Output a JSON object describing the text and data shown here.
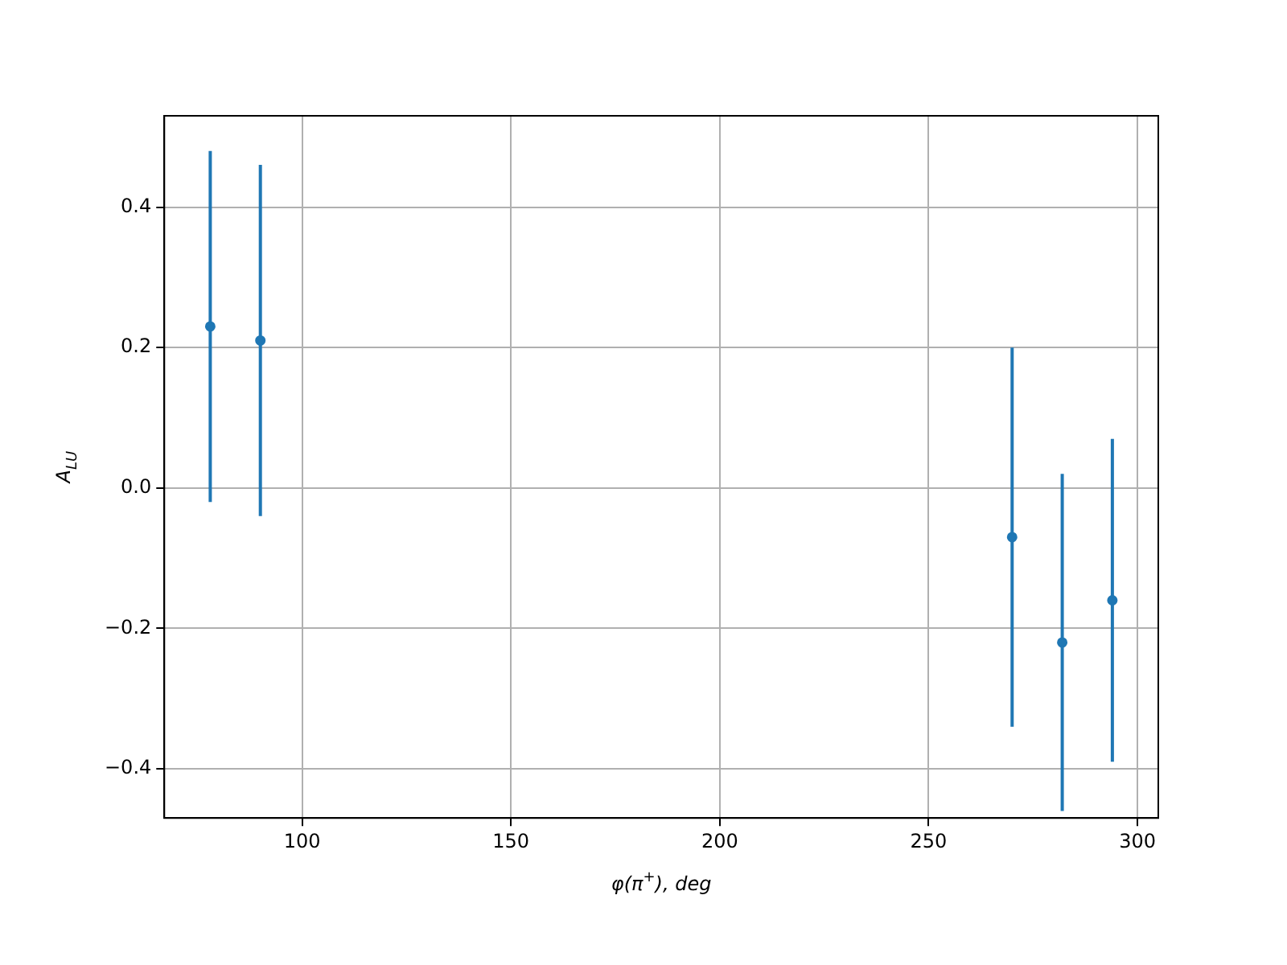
{
  "chart_data": {
    "type": "scatter",
    "xlabel": "φ(π$^{+}$), deg",
    "ylabel": "A$_{LU}$",
    "x": [
      78,
      90,
      270,
      282,
      294
    ],
    "series": [
      {
        "color": "#1f77b4",
        "values": [
          0.23,
          0.21,
          -0.07,
          -0.22,
          -0.16
        ],
        "errors": [
          0.25,
          0.25,
          0.27,
          0.24,
          0.23
        ]
      }
    ],
    "xlim": [
      67,
      305
    ],
    "xticks": [
      100,
      150,
      200,
      250,
      300
    ],
    "ylim": [
      -0.47,
      0.53
    ],
    "yticks": [
      {
        "value": -0.4,
        "label": "−0.4"
      },
      {
        "value": -0.2,
        "label": "−0.2"
      },
      {
        "value": 0,
        "label": "0.0"
      },
      {
        "value": 0.2,
        "label": "0.2"
      },
      {
        "value": 0.4,
        "label": "0.4"
      }
    ],
    "grid": true,
    "legend": false,
    "marker": "circle"
  }
}
